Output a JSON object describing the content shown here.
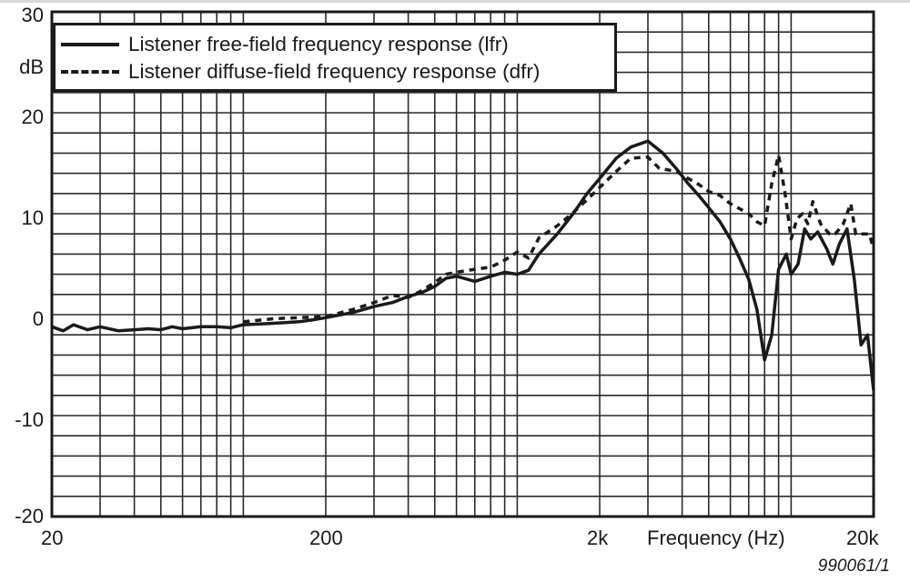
{
  "chart_data": {
    "type": "line",
    "title": "",
    "xlabel": "Frequency (Hz)",
    "ylabel": "dB",
    "xscale": "log",
    "xlim": [
      20,
      20000
    ],
    "ylim": [
      -20,
      30
    ],
    "grid": true,
    "legend_position": "top-left",
    "x_ticks": [
      {
        "value": 20,
        "label": "20"
      },
      {
        "value": 200,
        "label": "200"
      },
      {
        "value": 2000,
        "label": "2k"
      },
      {
        "value": 20000,
        "label": "20k"
      }
    ],
    "y_ticks": [
      {
        "value": 30,
        "label": "30"
      },
      {
        "value": 20,
        "label": "20"
      },
      {
        "value": 10,
        "label": "10"
      },
      {
        "value": 0,
        "label": "0"
      },
      {
        "value": -10,
        "label": "-10"
      },
      {
        "value": -20,
        "label": "-20"
      }
    ],
    "series": [
      {
        "name": "Listener free-field frequency response (lfr)",
        "style": "solid",
        "points": [
          [
            20,
            -1.2
          ],
          [
            22,
            -1.6
          ],
          [
            24,
            -1.0
          ],
          [
            27,
            -1.5
          ],
          [
            30,
            -1.2
          ],
          [
            35,
            -1.6
          ],
          [
            40,
            -1.5
          ],
          [
            45,
            -1.4
          ],
          [
            50,
            -1.5
          ],
          [
            55,
            -1.2
          ],
          [
            60,
            -1.4
          ],
          [
            70,
            -1.2
          ],
          [
            80,
            -1.2
          ],
          [
            90,
            -1.3
          ],
          [
            100,
            -1.0
          ],
          [
            120,
            -0.9
          ],
          [
            140,
            -0.8
          ],
          [
            160,
            -0.7
          ],
          [
            180,
            -0.5
          ],
          [
            200,
            -0.3
          ],
          [
            250,
            0.2
          ],
          [
            300,
            0.8
          ],
          [
            350,
            1.2
          ],
          [
            400,
            1.8
          ],
          [
            450,
            2.2
          ],
          [
            500,
            2.8
          ],
          [
            550,
            3.6
          ],
          [
            600,
            3.8
          ],
          [
            700,
            3.3
          ],
          [
            800,
            3.8
          ],
          [
            900,
            4.2
          ],
          [
            1000,
            4.0
          ],
          [
            1100,
            4.4
          ],
          [
            1200,
            6.0
          ],
          [
            1400,
            8.0
          ],
          [
            1600,
            10.0
          ],
          [
            1800,
            12.0
          ],
          [
            2000,
            13.5
          ],
          [
            2300,
            15.5
          ],
          [
            2600,
            16.6
          ],
          [
            3000,
            17.2
          ],
          [
            3400,
            16.0
          ],
          [
            3800,
            14.5
          ],
          [
            4200,
            13.0
          ],
          [
            4600,
            11.8
          ],
          [
            5000,
            10.6
          ],
          [
            5500,
            9.2
          ],
          [
            6000,
            7.5
          ],
          [
            6500,
            5.5
          ],
          [
            7000,
            3.5
          ],
          [
            7500,
            0.5
          ],
          [
            8000,
            -4.5
          ],
          [
            8500,
            -2.0
          ],
          [
            9000,
            4.5
          ],
          [
            9600,
            6.0
          ],
          [
            10000,
            4.0
          ],
          [
            10600,
            5.0
          ],
          [
            11200,
            8.5
          ],
          [
            11800,
            7.5
          ],
          [
            12500,
            8.2
          ],
          [
            13500,
            6.5
          ],
          [
            14200,
            5.0
          ],
          [
            15000,
            7.0
          ],
          [
            16000,
            8.5
          ],
          [
            17000,
            3.5
          ],
          [
            18000,
            -3.0
          ],
          [
            19000,
            -2.0
          ],
          [
            20000,
            -7.5
          ]
        ]
      },
      {
        "name": "Listener diffuse-field frequency response (dfr)",
        "style": "dashed",
        "points": [
          [
            100,
            -0.7
          ],
          [
            130,
            -0.4
          ],
          [
            160,
            -0.3
          ],
          [
            200,
            -0.2
          ],
          [
            250,
            0.5
          ],
          [
            300,
            1.2
          ],
          [
            350,
            1.9
          ],
          [
            400,
            1.7
          ],
          [
            450,
            2.4
          ],
          [
            500,
            3.2
          ],
          [
            550,
            4.0
          ],
          [
            600,
            4.2
          ],
          [
            700,
            4.5
          ],
          [
            800,
            4.7
          ],
          [
            900,
            5.4
          ],
          [
            1000,
            6.2
          ],
          [
            1100,
            5.6
          ],
          [
            1200,
            7.6
          ],
          [
            1400,
            8.8
          ],
          [
            1600,
            10.1
          ],
          [
            1800,
            11.4
          ],
          [
            2000,
            12.6
          ],
          [
            2300,
            14.2
          ],
          [
            2600,
            15.5
          ],
          [
            3000,
            15.6
          ],
          [
            3300,
            14.5
          ],
          [
            3800,
            14.2
          ],
          [
            4200,
            13.5
          ],
          [
            4600,
            12.9
          ],
          [
            5000,
            12.2
          ],
          [
            5500,
            11.8
          ],
          [
            6000,
            11.0
          ],
          [
            7000,
            10.0
          ],
          [
            7500,
            9.2
          ],
          [
            8000,
            8.8
          ],
          [
            8500,
            13.0
          ],
          [
            9000,
            15.8
          ],
          [
            9500,
            12.0
          ],
          [
            10000,
            7.5
          ],
          [
            10500,
            9.5
          ],
          [
            11000,
            10.0
          ],
          [
            11500,
            9.0
          ],
          [
            12000,
            11.2
          ],
          [
            12800,
            9.0
          ],
          [
            13800,
            8.0
          ],
          [
            14500,
            8.0
          ],
          [
            15500,
            9.0
          ],
          [
            16500,
            11.0
          ],
          [
            17200,
            8.0
          ],
          [
            18500,
            8.0
          ],
          [
            19300,
            8.0
          ],
          [
            20000,
            6.5
          ]
        ]
      }
    ]
  },
  "axes": {
    "y_unit": "dB",
    "x_title": "Frequency (Hz)",
    "y_labels": [
      "30",
      "20",
      "10",
      "0",
      "-10",
      "-20"
    ],
    "x_labels": [
      "20",
      "200",
      "2k",
      "20k"
    ]
  },
  "legend": {
    "items": [
      {
        "label": "Listener free-field frequency response (lfr)",
        "style": "solid"
      },
      {
        "label": "Listener diffuse-field frequency response (dfr)",
        "style": "dashed"
      }
    ]
  },
  "figure_code": "990061/1",
  "colors": {
    "line": "#1a1a1a",
    "grid": "#2a2a2a",
    "background": "#ffffff"
  }
}
